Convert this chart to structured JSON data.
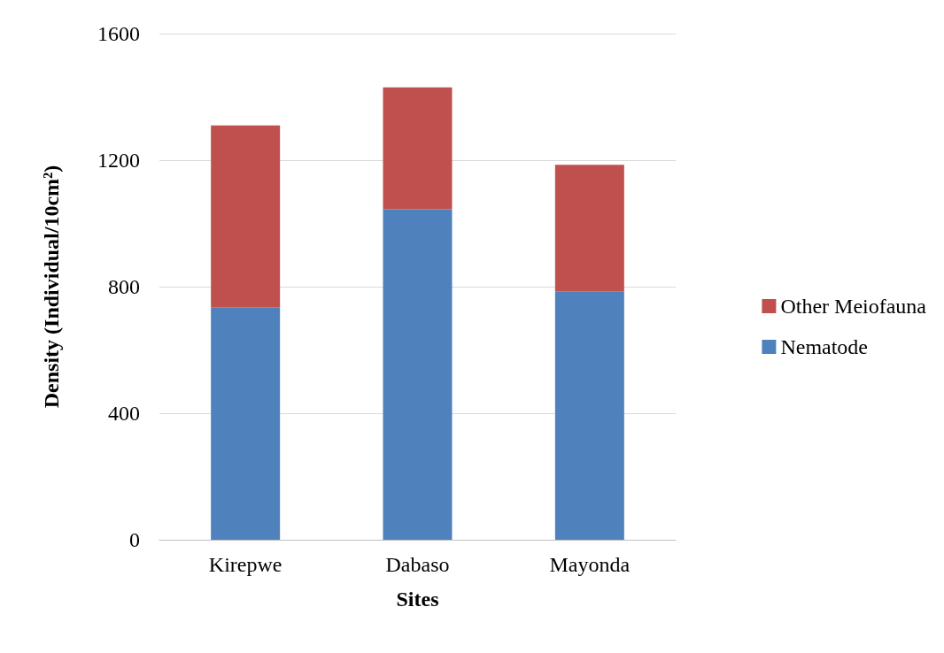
{
  "chart_data": {
    "type": "bar",
    "stacked": true,
    "xlabel": "Sites",
    "ylabel": "Density (Individual/10cm²)",
    "categories": [
      "Kirepwe",
      "Dabaso",
      "Mayonda"
    ],
    "series": [
      {
        "name": "Nematode",
        "color": "#4f81bd",
        "values": [
          735,
          1045,
          785
        ]
      },
      {
        "name": "Other Meiofauna",
        "color": "#c0504d",
        "values": [
          575,
          385,
          400
        ]
      }
    ],
    "ylim": [
      0,
      1600
    ],
    "yticks": [
      0,
      400,
      800,
      1200,
      1600
    ],
    "grid": "y",
    "legend": "right"
  }
}
